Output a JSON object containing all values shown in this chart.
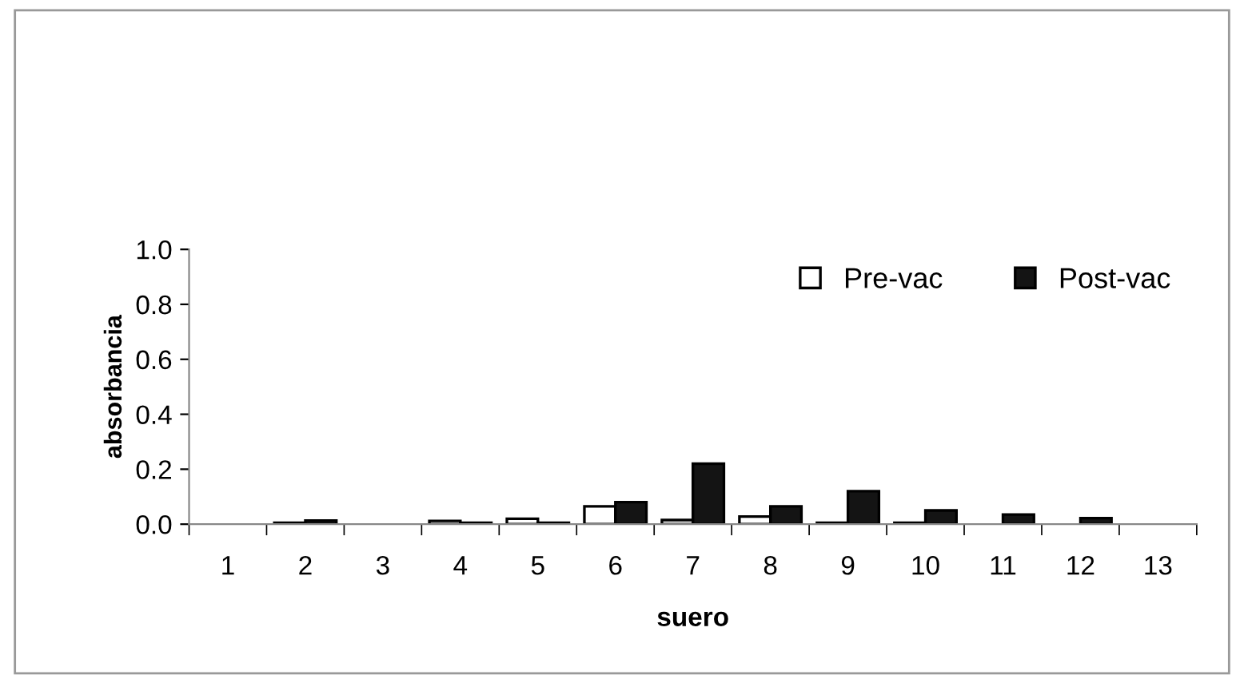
{
  "chart_data": {
    "type": "bar",
    "xlabel": "suero",
    "ylabel": "absorbancia",
    "categories": [
      "1",
      "2",
      "3",
      "4",
      "5",
      "6",
      "7",
      "8",
      "9",
      "10",
      "11",
      "12",
      "13"
    ],
    "series": [
      {
        "name": "Pre-vac",
        "color": "#ffffff",
        "values": [
          null,
          0.005,
          null,
          0.012,
          0.02,
          0.065,
          0.015,
          0.028,
          0.005,
          0.005,
          null,
          null,
          null
        ]
      },
      {
        "name": "Post-vac",
        "color": "#141414",
        "values": [
          null,
          0.013,
          null,
          0.005,
          0.005,
          0.08,
          0.22,
          0.065,
          0.12,
          0.05,
          0.035,
          0.022,
          null
        ]
      }
    ],
    "ylim": [
      0,
      1.0
    ],
    "yticks": [
      {
        "value": 0,
        "label": "0.0"
      },
      {
        "value": 0.2,
        "label": "0.2"
      },
      {
        "value": 0.4,
        "label": "0.4"
      },
      {
        "value": 0.6,
        "label": "0.6"
      },
      {
        "value": 0.8,
        "label": "0.8"
      },
      {
        "value": 1.0,
        "label": "1.0"
      }
    ],
    "grid": false,
    "legend": "top right"
  }
}
